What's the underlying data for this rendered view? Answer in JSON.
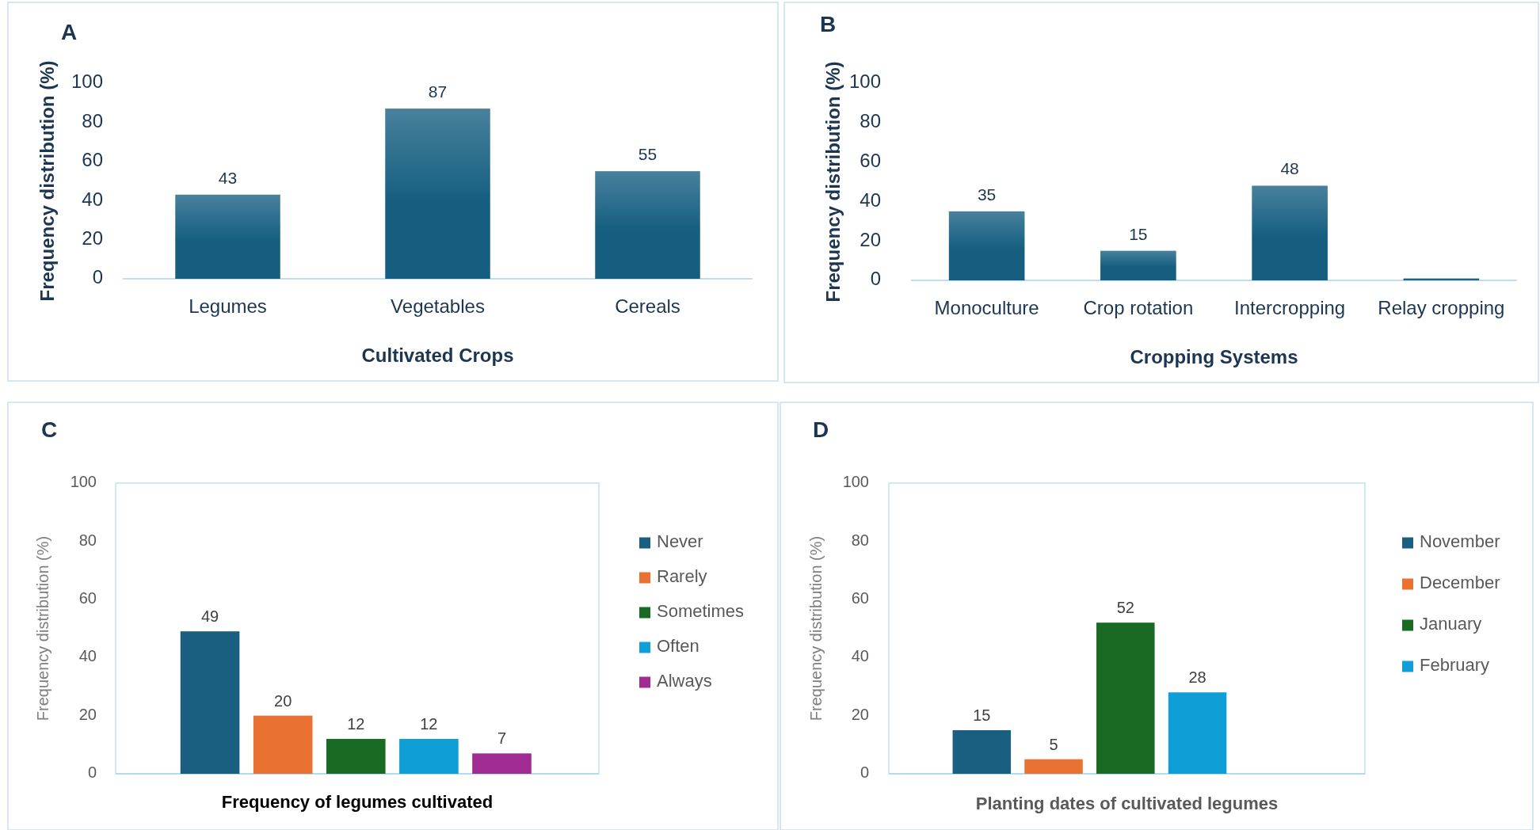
{
  "chart_data": [
    {
      "type": "bar",
      "title": "A",
      "xlabel": "Cultivated Crops",
      "ylabel": "Frequency distribution (%)",
      "categories": [
        "Legumes",
        "Vegetables",
        "Cereals"
      ],
      "values": [
        43,
        87,
        55
      ],
      "color": "#155e80",
      "ylim": [
        0,
        100
      ],
      "yticks": [
        0,
        20,
        40,
        60,
        80,
        100
      ],
      "grid": false,
      "legend": false,
      "data_labels": true
    },
    {
      "type": "bar",
      "title": "B",
      "xlabel": "Cropping Systems",
      "ylabel": "Frequency distribution (%)",
      "categories": [
        "Monoculture",
        "Crop rotation",
        "Intercropping",
        "Relay cropping"
      ],
      "values": [
        35,
        15,
        48,
        1
      ],
      "value_labels": [
        "35",
        "15",
        "48",
        null
      ],
      "color": "#155e80",
      "ylim": [
        0,
        100
      ],
      "yticks": [
        0,
        20,
        40,
        60,
        80,
        100
      ],
      "grid": false,
      "legend": false
    },
    {
      "type": "bar",
      "title": "C",
      "xlabel": "Frequency of legumes cultivated",
      "ylabel": "Frequency distribution (%)",
      "categories": [
        null
      ],
      "series": [
        {
          "name": "Never",
          "color": "#1a5f80",
          "values": [
            49
          ]
        },
        {
          "name": "Rarely",
          "color": "#e97132",
          "values": [
            20
          ]
        },
        {
          "name": "Sometimes",
          "color": "#196b24",
          "values": [
            12
          ]
        },
        {
          "name": "Often",
          "color": "#0f9ed5",
          "values": [
            12
          ]
        },
        {
          "name": "Always",
          "color": "#a02b93",
          "values": [
            7
          ]
        }
      ],
      "ylim": [
        0,
        100
      ],
      "yticks": [
        0,
        20,
        40,
        60,
        80,
        100
      ],
      "grid": false,
      "legend": "right",
      "data_labels": true
    },
    {
      "type": "bar",
      "title": "D",
      "xlabel": "Planting dates of cultivated legumes",
      "ylabel": "Frequency distribution (%)",
      "categories": [
        null
      ],
      "series": [
        {
          "name": "November",
          "color": "#1a5f80",
          "values": [
            15
          ]
        },
        {
          "name": "December",
          "color": "#e97132",
          "values": [
            5
          ]
        },
        {
          "name": "January",
          "color": "#196b24",
          "values": [
            52
          ]
        },
        {
          "name": "February",
          "color": "#0f9ed5",
          "values": [
            28
          ]
        }
      ],
      "ylim": [
        0,
        100
      ],
      "yticks": [
        0,
        20,
        40,
        60,
        80,
        100
      ],
      "grid": false,
      "legend": "right",
      "data_labels": true
    }
  ]
}
